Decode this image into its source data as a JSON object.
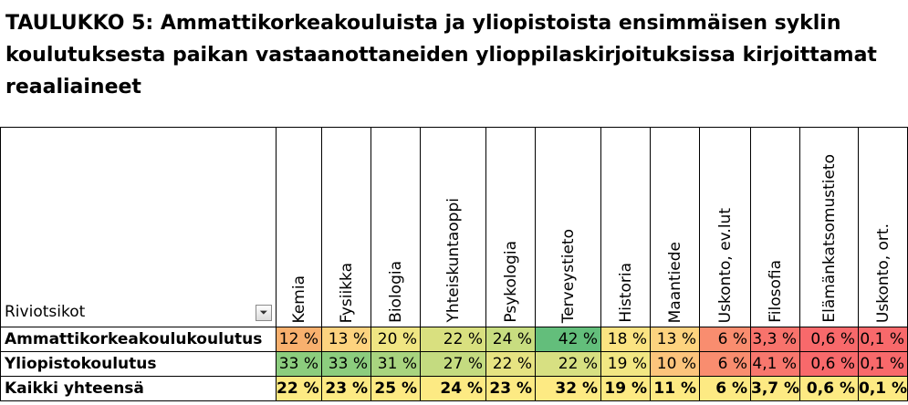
{
  "title": "TAULUKKO 5: Ammattikorkeakouluista ja yliopistoista ensimmäisen syklin koulutuksesta paikan vastaanottaneiden ylioppilaskirjoituksissa kirjoittamat reaaliaineet",
  "row_header": "Riviotsikot",
  "columns": [
    "Kemia",
    "Fysiikka",
    "Biologia",
    "Yhteiskuntaoppi",
    "Psykologia",
    "Terveystieto",
    "Historia",
    "Maantiede",
    "Uskonto, ev.lut",
    "Filosofia",
    "Elämänkatsomustieto",
    "Uskonto, ort."
  ],
  "rows": [
    {
      "label": "Ammattikorkeakoulukoulutus",
      "values": [
        "12 %",
        "13 %",
        "20 %",
        "22 %",
        "24 %",
        "42 %",
        "18 %",
        "13 %",
        "6 %",
        "3,3 %",
        "0,6 %",
        "0,1 %"
      ],
      "colors": [
        "#f8b06e",
        "#fdd37f",
        "#f0e683",
        "#d9e07f",
        "#c8dd80",
        "#63be7b",
        "#fbe482",
        "#fdd37f",
        "#f98d6f",
        "#f8736c",
        "#f8696b",
        "#f8696b"
      ]
    },
    {
      "label": "Yliopistokoulutus",
      "values": [
        "33 %",
        "33 %",
        "31 %",
        "27 %",
        "22 %",
        "22 %",
        "19 %",
        "10 %",
        "6 %",
        "4,1 %",
        "0,6 %",
        "0,1 %"
      ],
      "colors": [
        "#8ccd7e",
        "#8ccd7e",
        "#a8d47f",
        "#c4db80",
        "#e6e382",
        "#d7e082",
        "#f2e783",
        "#fcc47c",
        "#f98d6f",
        "#f8776d",
        "#f8696b",
        "#f8696b"
      ]
    },
    {
      "label": "Kaikki yhteensä",
      "values": [
        "22 %",
        "23 %",
        "25 %",
        "24 %",
        "23 %",
        "32 %",
        "19 %",
        "11 %",
        "6 %",
        "3,7 %",
        "0,6 %",
        "0,1 %"
      ],
      "colors": [
        "#fdea83",
        "#fdea83",
        "#fdea83",
        "#fdea83",
        "#fdea83",
        "#fdea83",
        "#fdea83",
        "#fdea83",
        "#fdea83",
        "#fdea83",
        "#fdea83",
        "#fdea83"
      ]
    }
  ]
}
